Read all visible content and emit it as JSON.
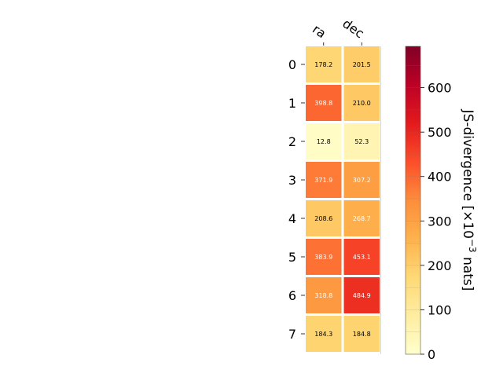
{
  "chart_data": {
    "type": "heatmap",
    "columns": [
      "ra",
      "dec"
    ],
    "rows": [
      "0",
      "1",
      "2",
      "3",
      "4",
      "5",
      "6",
      "7"
    ],
    "values": [
      [
        178.2,
        201.5
      ],
      [
        398.8,
        210.0
      ],
      [
        12.8,
        52.3
      ],
      [
        371.9,
        307.2
      ],
      [
        208.6,
        268.7
      ],
      [
        383.9,
        453.1
      ],
      [
        318.8,
        484.9
      ],
      [
        184.3,
        184.8
      ]
    ],
    "value_labels": [
      [
        "178.2",
        "201.5"
      ],
      [
        "398.8",
        "210.0"
      ],
      [
        "12.8",
        "52.3"
      ],
      [
        "371.9",
        "307.2"
      ],
      [
        "208.6",
        "268.7"
      ],
      [
        "383.9",
        "453.1"
      ],
      [
        "318.8",
        "484.9"
      ],
      [
        "184.3",
        "184.8"
      ]
    ],
    "colormap": "YlOrRd",
    "colorbar": {
      "label": "JS-divergence [×10",
      "label_exponent": "−3",
      "label_suffix": " nats]",
      "range": [
        0,
        693
      ],
      "ticks": [
        "0",
        "100",
        "200",
        "300",
        "400",
        "500",
        "600"
      ],
      "tick_values": [
        0,
        100,
        200,
        300,
        400,
        500,
        600
      ]
    }
  }
}
